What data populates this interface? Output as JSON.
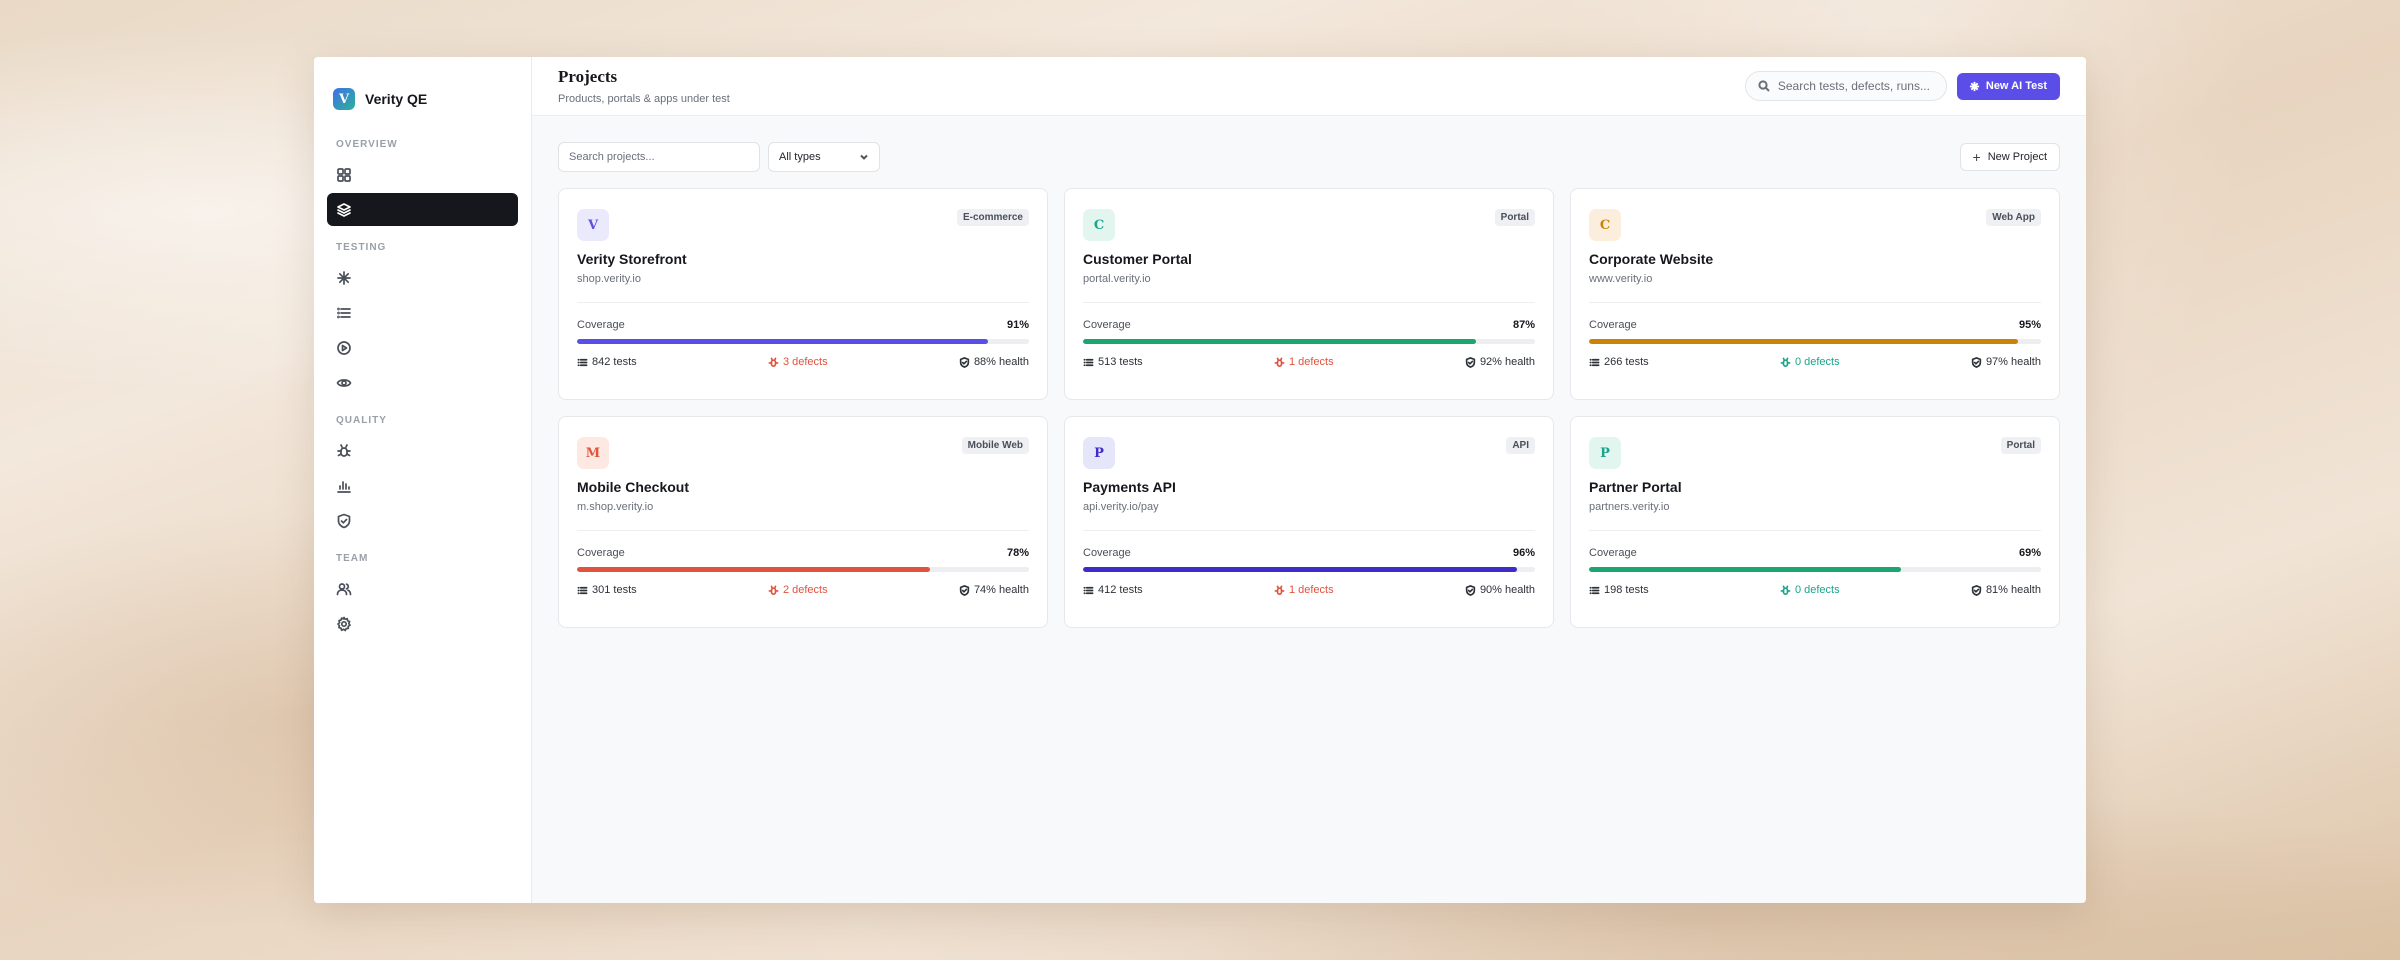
{
  "brand": {
    "initial": "V",
    "name": "Verity QE"
  },
  "sidebar": {
    "sections": [
      "OVERVIEW",
      "TESTING",
      "QUALITY",
      "TEAM"
    ]
  },
  "header": {
    "title": "Projects",
    "subtitle": "Products, portals & apps under test",
    "search_placeholder": "Search tests, defects, runs...",
    "ai_button": "New AI Test"
  },
  "filters": {
    "search_placeholder": "Search projects...",
    "type_select": "All types",
    "new_project": "New Project"
  },
  "coverage_label": "Coverage",
  "colors": {
    "accent": "#5b4de8",
    "red": "#e0533c",
    "green": "#1aa58a"
  },
  "projects": [
    {
      "initial": "V",
      "name": "Verity Storefront",
      "url": "shop.verity.io",
      "type": "E-commerce",
      "coverage": "91%",
      "coverage_value": 0.91,
      "bar_color": "#5b4de8",
      "avatar_bg": "#ebeafd",
      "avatar_fg": "#5b4de8",
      "tests": "842 tests",
      "defects": "3 defects",
      "defects_status": "red",
      "health": "88% health"
    },
    {
      "initial": "C",
      "name": "Customer Portal",
      "url": "portal.verity.io",
      "type": "Portal",
      "coverage": "87%",
      "coverage_value": 0.87,
      "bar_color": "#1aa571",
      "avatar_bg": "#e2f5ef",
      "avatar_fg": "#1aa58a",
      "tests": "513 tests",
      "defects": "1 defects",
      "defects_status": "red",
      "health": "92% health"
    },
    {
      "initial": "C",
      "name": "Corporate Website",
      "url": "www.verity.io",
      "type": "Web App",
      "coverage": "95%",
      "coverage_value": 0.95,
      "bar_color": "#c98408",
      "avatar_bg": "#fbeedd",
      "avatar_fg": "#c98408",
      "tests": "266 tests",
      "defects": "0 defects",
      "defects_status": "green",
      "health": "97% health"
    },
    {
      "initial": "M",
      "name": "Mobile Checkout",
      "url": "m.shop.verity.io",
      "type": "Mobile Web",
      "coverage": "78%",
      "coverage_value": 0.78,
      "bar_color": "#e0533c",
      "avatar_bg": "#fde9e2",
      "avatar_fg": "#e0533c",
      "tests": "301 tests",
      "defects": "2 defects",
      "defects_status": "red",
      "health": "74% health"
    },
    {
      "initial": "P",
      "name": "Payments API",
      "url": "api.verity.io/pay",
      "type": "API",
      "coverage": "96%",
      "coverage_value": 0.96,
      "bar_color": "#3f2bc8",
      "avatar_bg": "#e6e6fb",
      "avatar_fg": "#3f2bc8",
      "tests": "412 tests",
      "defects": "1 defects",
      "defects_status": "red",
      "health": "90% health"
    },
    {
      "initial": "P",
      "name": "Partner Portal",
      "url": "partners.verity.io",
      "type": "Portal",
      "coverage": "69%",
      "coverage_value": 0.69,
      "bar_color": "#1aa571",
      "avatar_bg": "#e2f5ef",
      "avatar_fg": "#1aa58a",
      "tests": "198 tests",
      "defects": "0 defects",
      "defects_status": "green",
      "health": "81% health"
    }
  ]
}
